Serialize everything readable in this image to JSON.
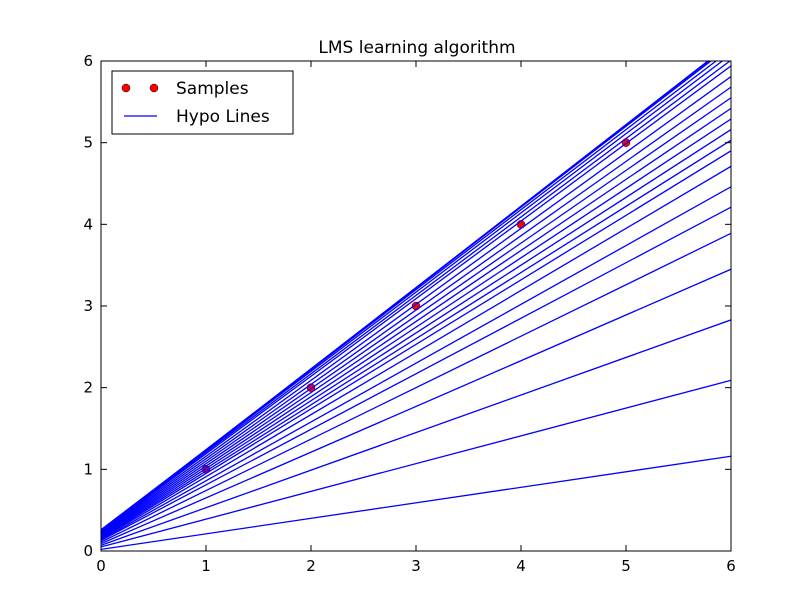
{
  "chart_data": {
    "type": "line",
    "title": "LMS learning algorithm",
    "xlabel": "",
    "ylabel": "",
    "xlim": [
      0,
      6
    ],
    "ylim": [
      0,
      6
    ],
    "xticks": [
      0,
      1,
      2,
      3,
      4,
      5,
      6
    ],
    "yticks": [
      0,
      1,
      2,
      3,
      4,
      5,
      6
    ],
    "grid": false,
    "legend": {
      "position": "top-left",
      "entries": [
        {
          "label": "Samples",
          "marker": "circle",
          "color": "#ff0000"
        },
        {
          "label": "Hypo Lines",
          "marker": "line",
          "color": "#0000ff"
        }
      ]
    },
    "samples": {
      "name": "Samples",
      "x": [
        1,
        2,
        3,
        4,
        5
      ],
      "y": [
        1,
        2,
        3,
        4,
        5
      ],
      "color": "#ff0000"
    },
    "hypo_lines": {
      "name": "Hypo Lines",
      "color": "#0000ff",
      "x_range": [
        0,
        6
      ],
      "lines": [
        [
          0.02,
          0.19
        ],
        [
          0.05,
          0.34
        ],
        [
          0.07,
          0.46
        ],
        [
          0.09,
          0.56
        ],
        [
          0.11,
          0.63
        ],
        [
          0.13,
          0.68
        ],
        [
          0.14,
          0.72
        ],
        [
          0.15,
          0.76
        ],
        [
          0.16,
          0.79
        ],
        [
          0.17,
          0.81
        ],
        [
          0.18,
          0.83
        ],
        [
          0.19,
          0.85
        ],
        [
          0.2,
          0.87
        ],
        [
          0.21,
          0.89
        ],
        [
          0.22,
          0.91
        ],
        [
          0.23,
          0.93
        ],
        [
          0.24,
          0.95
        ],
        [
          0.25,
          0.96
        ],
        [
          0.26,
          0.97
        ],
        [
          0.26,
          0.98
        ],
        [
          0.25,
          0.99
        ],
        [
          0.24,
          0.995
        ],
        [
          0.23,
          0.998
        ],
        [
          0.22,
          1.0
        ]
      ]
    }
  }
}
